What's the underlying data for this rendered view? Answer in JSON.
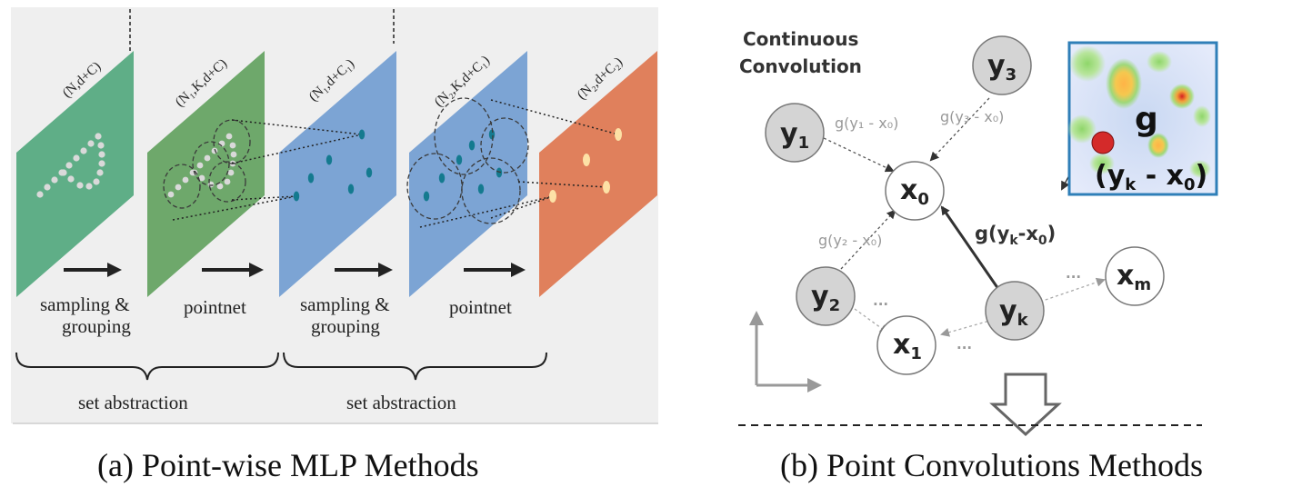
{
  "panel_a": {
    "caption": "(a) Point-wise MLP Methods",
    "planes": [
      {
        "label": "(N,d+C)",
        "color": "#5fae87"
      },
      {
        "label": "(N₁,K,d+C)",
        "color": "#6ea86b"
      },
      {
        "label": "(N₁,d+C₁)",
        "color": "#7ca4d4"
      },
      {
        "label": "(N₂,K,d+C₁)",
        "color": "#7ca4d4"
      },
      {
        "label": "(N₂,d+C₂)",
        "color": "#e0805c"
      }
    ],
    "steps": [
      "sampling &",
      "grouping",
      "pointnet",
      "sampling &",
      "grouping",
      "pointnet"
    ],
    "groups": [
      "set abstraction",
      "set abstraction"
    ]
  },
  "panel_b": {
    "caption": "(b) Point Convolutions Methods",
    "title_line1": "Continuous",
    "title_line2": "Convolution",
    "nodes": {
      "x0": "x",
      "x0_sub": "0",
      "x1": "x",
      "x1_sub": "1",
      "xm": "x",
      "xm_sub": "m",
      "y1": "y",
      "y1_sub": "1",
      "y2": "y",
      "y2_sub": "2",
      "y3": "y",
      "y3_sub": "3",
      "yk": "y",
      "yk_sub": "k"
    },
    "edges": {
      "g1": "g(y₁ - x₀)",
      "g2": "g(y₂ - x₀)",
      "g3": "g(y₃ - x₀)",
      "gk_a": "g(y",
      "gk_sub1": "k",
      "gk_b": "-x",
      "gk_sub2": "0",
      "gk_c": ")"
    },
    "ellipsis": "...",
    "inset": {
      "g": "g",
      "expr_a": "(y",
      "expr_sub1": "k",
      "expr_b": " - x",
      "expr_sub2": "0",
      "expr_c": ")"
    }
  }
}
